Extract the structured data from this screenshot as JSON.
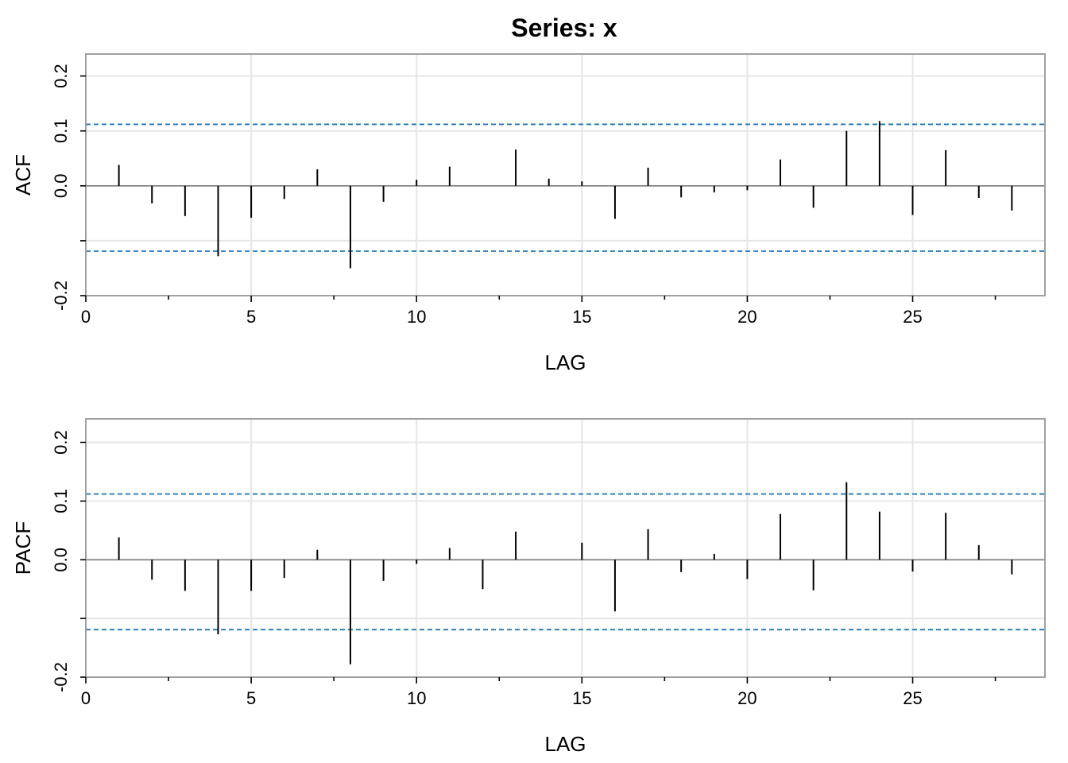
{
  "title": "Series:  x",
  "colors": {
    "grid": "#e6e6e6",
    "frame": "#a0a0a0",
    "conf": "#1f77b4",
    "bar": "#000000",
    "zero": "#808080"
  },
  "chart_data": [
    {
      "type": "bar",
      "name": "acf",
      "xlabel": "LAG",
      "ylabel": "ACF",
      "xlim": [
        0,
        29
      ],
      "ylim": [
        -0.2,
        0.24
      ],
      "x_ticks": [
        0,
        5,
        10,
        15,
        20,
        25
      ],
      "x_tick_labels": [
        "0",
        "5",
        "10",
        "15",
        "20",
        "25"
      ],
      "y_ticks": [
        -0.2,
        0.0,
        0.1,
        0.2
      ],
      "y_tick_labels": [
        "-0.2",
        "0.0",
        "0.1",
        "0.2"
      ],
      "grid": true,
      "conf_bounds": [
        0.112,
        -0.119
      ],
      "x": [
        1,
        2,
        3,
        4,
        5,
        6,
        7,
        8,
        9,
        10,
        11,
        12,
        13,
        14,
        15,
        16,
        17,
        18,
        19,
        20,
        21,
        22,
        23,
        24,
        25,
        26,
        27,
        28
      ],
      "values": [
        0.038,
        -0.032,
        -0.055,
        -0.128,
        -0.058,
        -0.024,
        0.03,
        -0.15,
        -0.029,
        0.011,
        0.035,
        0.0,
        0.066,
        0.013,
        0.008,
        -0.06,
        0.033,
        -0.021,
        -0.012,
        -0.008,
        0.048,
        -0.04,
        0.1,
        0.118,
        -0.053,
        0.065,
        -0.022,
        -0.045
      ]
    },
    {
      "type": "bar",
      "name": "pacf",
      "xlabel": "LAG",
      "ylabel": "PACF",
      "xlim": [
        0,
        29
      ],
      "ylim": [
        -0.2,
        0.24
      ],
      "x_ticks": [
        0,
        5,
        10,
        15,
        20,
        25
      ],
      "x_tick_labels": [
        "0",
        "5",
        "10",
        "15",
        "20",
        "25"
      ],
      "y_ticks": [
        -0.2,
        0.0,
        0.1,
        0.2
      ],
      "y_tick_labels": [
        "-0.2",
        "0.0",
        "0.1",
        "0.2"
      ],
      "grid": true,
      "conf_bounds": [
        0.112,
        -0.119
      ],
      "x": [
        1,
        2,
        3,
        4,
        5,
        6,
        7,
        8,
        9,
        10,
        11,
        12,
        13,
        14,
        15,
        16,
        17,
        18,
        19,
        20,
        21,
        22,
        23,
        24,
        25,
        26,
        27,
        28
      ],
      "values": [
        0.038,
        -0.034,
        -0.053,
        -0.127,
        -0.053,
        -0.031,
        0.017,
        -0.178,
        -0.036,
        -0.007,
        0.02,
        -0.05,
        0.048,
        0.0,
        0.029,
        -0.088,
        0.052,
        -0.021,
        0.01,
        -0.033,
        0.078,
        -0.052,
        0.132,
        0.082,
        -0.02,
        0.08,
        0.025,
        -0.025
      ]
    }
  ]
}
